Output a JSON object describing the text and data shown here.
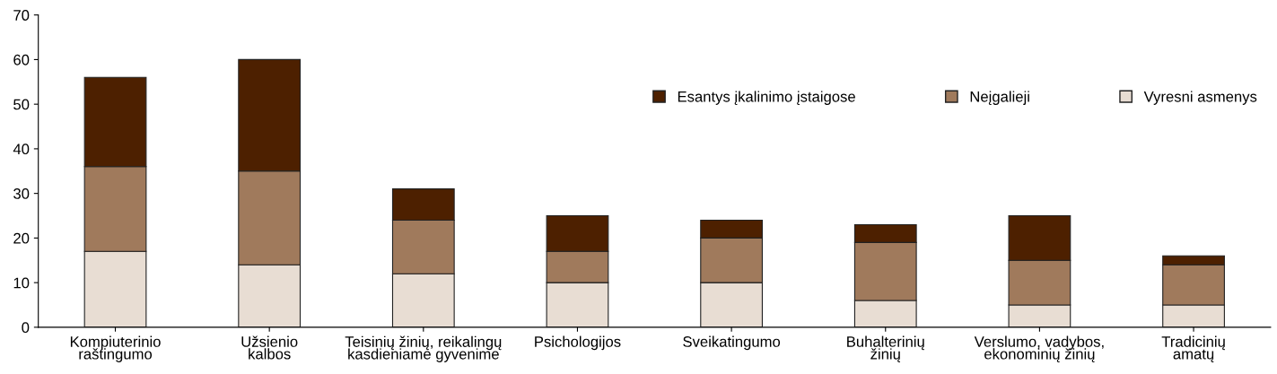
{
  "chart_data": {
    "type": "bar",
    "stacked": true,
    "categories": [
      "Kompiuterinio\nraštingumo",
      "Užsienio\nkalbos",
      "Teisinių žinių, reikalingų\nkasdieniame gyvenime",
      "Psichologijos",
      "Sveikatingumo",
      "Buhalterinių\nžinių",
      "Verslumo, vadybos,\nekonominių žinių",
      "Tradicinių\namatų"
    ],
    "series": [
      {
        "name": "Vyresni asmenys",
        "color": "#e8ddd3",
        "values": [
          17,
          14,
          12,
          10,
          10,
          6,
          5,
          5
        ]
      },
      {
        "name": "Neįgalieji",
        "color": "#a07a5c",
        "values": [
          19,
          21,
          12,
          7,
          10,
          13,
          10,
          9
        ]
      },
      {
        "name": "Esantys įkalinimo įstaigose",
        "color": "#4d2000",
        "values": [
          20,
          25,
          7,
          8,
          4,
          4,
          10,
          2
        ]
      }
    ],
    "ylim": [
      0,
      70
    ],
    "yticks": [
      0,
      10,
      20,
      30,
      40,
      50,
      60,
      70
    ],
    "grid": false,
    "legend": "top right"
  }
}
